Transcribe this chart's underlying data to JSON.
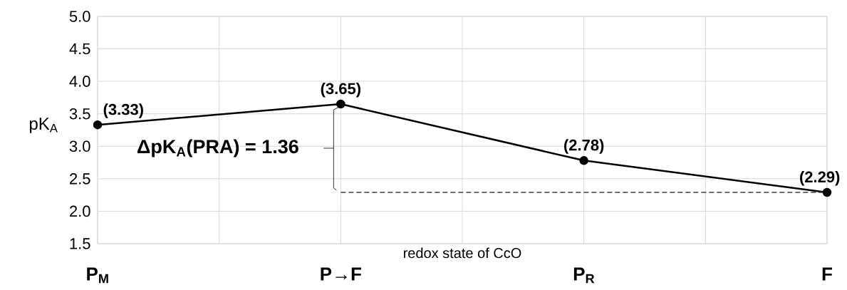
{
  "chart_data": {
    "type": "line",
    "xlabel": "redox state of CcO",
    "ylabel": "pK$_{A}$",
    "categories": [
      "P$_{M}$",
      "P→F",
      "P$_{R}$",
      "F"
    ],
    "series": [
      {
        "color": "#000000",
        "values": [
          3.33,
          3.65,
          2.78,
          2.29
        ],
        "value_labels": [
          "(3.33)",
          "(3.65)",
          "(2.78)",
          "(2.29)"
        ],
        "marker": "circle",
        "line_style": "solid"
      },
      {
        "color": "#404040",
        "values": [
          null,
          2.29,
          2.29,
          2.29
        ],
        "marker": "none",
        "line_style": "dashed"
      }
    ],
    "ylim": [
      1.5,
      5.0
    ],
    "yticks": [
      {
        "value": 1.5,
        "label": "1.5"
      },
      {
        "value": 2.0,
        "label": "2.0"
      },
      {
        "value": 2.5,
        "label": "2.5"
      },
      {
        "value": 3.0,
        "label": "3.0"
      },
      {
        "value": 3.5,
        "label": "3.5"
      },
      {
        "value": 4.0,
        "label": "4.0"
      },
      {
        "value": 4.5,
        "label": "4.5"
      },
      {
        "value": 5.0,
        "label": "5.0"
      }
    ],
    "grid": true,
    "annotations": [
      "ΔpK$_{A}$(PRA) = 1.36"
    ]
  }
}
